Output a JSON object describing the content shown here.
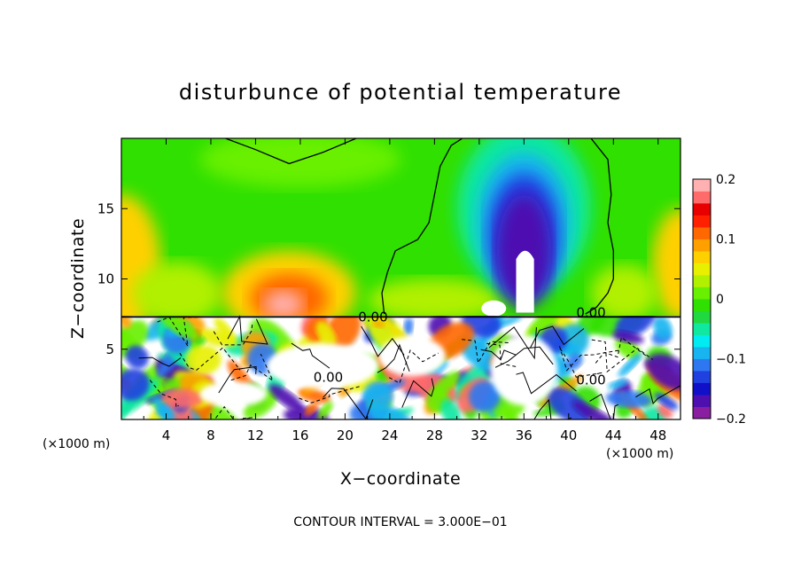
{
  "chart_data": {
    "type": "heatmap",
    "title": "disturbunce of potential temperature",
    "xlabel": "X−coordinate",
    "ylabel": "Z−coordinate",
    "x_unit_left": "(×1000 m)",
    "x_unit_right": "(×1000 m)",
    "xlim": [
      0,
      50
    ],
    "ylim": [
      0,
      20
    ],
    "x_ticks": [
      {
        "v": 4,
        "label": "4"
      },
      {
        "v": 8,
        "label": "8"
      },
      {
        "v": 12,
        "label": "12"
      },
      {
        "v": 16,
        "label": "16"
      },
      {
        "v": 20,
        "label": "20"
      },
      {
        "v": 24,
        "label": "24"
      },
      {
        "v": 28,
        "label": "28"
      },
      {
        "v": 32,
        "label": "32"
      },
      {
        "v": 36,
        "label": "36"
      },
      {
        "v": 40,
        "label": "40"
      },
      {
        "v": 44,
        "label": "44"
      },
      {
        "v": 48,
        "label": "48"
      }
    ],
    "y_ticks": [
      {
        "v": 5,
        "label": "5"
      },
      {
        "v": 10,
        "label": "10"
      },
      {
        "v": 15,
        "label": "15"
      }
    ],
    "colorbar": {
      "min": -0.2,
      "max": 0.2,
      "ticks": [
        {
          "v": 0.2,
          "label": "0.2"
        },
        {
          "v": 0.1,
          "label": "0.1"
        },
        {
          "v": 0.0,
          "label": "0"
        },
        {
          "v": -0.1,
          "label": "−0.1"
        },
        {
          "v": -0.2,
          "label": "−0.2"
        }
      ],
      "colors": [
        "#8a1ea0",
        "#4d0fb0",
        "#1010c8",
        "#2040e0",
        "#2d78f0",
        "#18b4f0",
        "#00ecf0",
        "#10e8a0",
        "#20d840",
        "#30e000",
        "#68f000",
        "#b0f000",
        "#e8f000",
        "#ffd000",
        "#ffa000",
        "#ff6800",
        "#ff2000",
        "#e80000",
        "#ff6a6a",
        "#ffb0b0"
      ]
    },
    "contour_labels": [
      {
        "x": 22.5,
        "y": 7.3,
        "text": "0.00"
      },
      {
        "x": 42.0,
        "y": 7.6,
        "text": "0.00"
      },
      {
        "x": 18.5,
        "y": 3.0,
        "text": "0.00"
      },
      {
        "x": 42.0,
        "y": 2.8,
        "text": "0.00"
      }
    ],
    "contour_interval_text": "CONTOUR INTERVAL = 3.000E−01"
  }
}
